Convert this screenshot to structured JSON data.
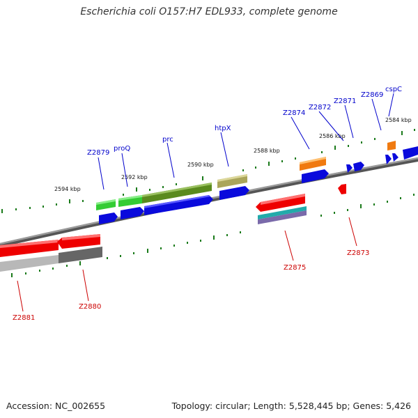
{
  "title": "Escherichia coli O157:H7 EDL933, complete genome",
  "footer": {
    "accession": "Accession: NC_002655",
    "summary": "Topology: circular; Length: 5,528,445 bp; Genes: 5,426"
  },
  "colors": {
    "forward_label": "#0000cc",
    "reverse_label": "#cc0000",
    "tick": "#1a7a1a",
    "backbone": "#8a8a8a"
  },
  "ticks": [
    "2594 kbp",
    "2592 kbp",
    "2590 kbp",
    "2588 kbp",
    "2586 kbp",
    "2584 kbp"
  ],
  "genes_forward": [
    {
      "label": "Z2879",
      "strand": "+"
    },
    {
      "label": "proQ",
      "strand": "+"
    },
    {
      "label": "prc",
      "strand": "+"
    },
    {
      "label": "htpX",
      "strand": "+"
    },
    {
      "label": "Z2874",
      "strand": "+"
    },
    {
      "label": "Z2872",
      "strand": "+"
    },
    {
      "label": "Z2871",
      "strand": "+"
    },
    {
      "label": "Z2869",
      "strand": "+"
    },
    {
      "label": "cspC",
      "strand": "+"
    }
  ],
  "genes_reverse": [
    {
      "label": "Z2881",
      "strand": "-"
    },
    {
      "label": "Z2880",
      "strand": "-"
    },
    {
      "label": "Z2875",
      "strand": "-"
    },
    {
      "label": "Z2873",
      "strand": "-"
    }
  ]
}
